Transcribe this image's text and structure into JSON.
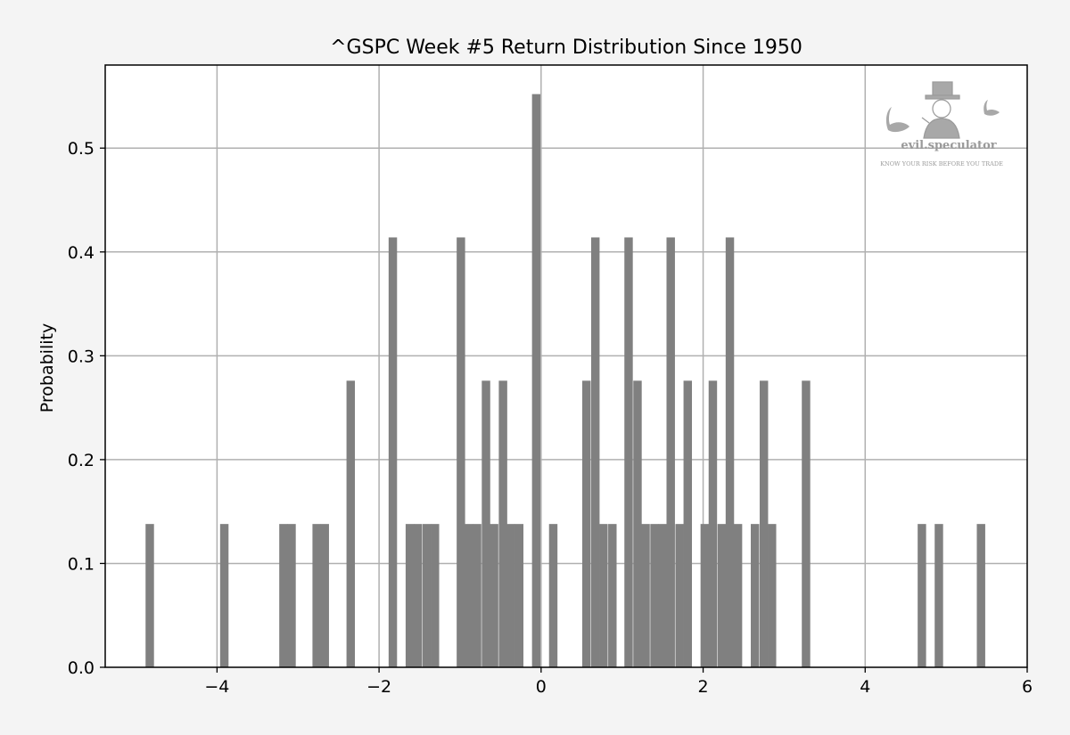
{
  "chart_data": {
    "type": "bar",
    "title": "^GSPC Week #5 Return Distribution Since 1950",
    "xlabel": "",
    "ylabel": "Probability",
    "xlim": [
      -5.38,
      6.0
    ],
    "ylim": [
      0.0,
      0.58
    ],
    "grid": true,
    "bin_width": 0.104,
    "xticks": [
      -4,
      -2,
      0,
      2,
      4,
      6
    ],
    "xtick_labels": [
      "−4",
      "−2",
      "0",
      "2",
      "4",
      "6"
    ],
    "yticks": [
      0.0,
      0.1,
      0.2,
      0.3,
      0.4,
      0.5
    ],
    "ytick_labels": [
      "0.0",
      "0.1",
      "0.2",
      "0.3",
      "0.4",
      "0.5"
    ],
    "color": "#808080",
    "bins": [
      {
        "x": -4.83,
        "y": 0.138
      },
      {
        "x": -3.91,
        "y": 0.138
      },
      {
        "x": -3.18,
        "y": 0.138
      },
      {
        "x": -3.08,
        "y": 0.138
      },
      {
        "x": -2.77,
        "y": 0.138
      },
      {
        "x": -2.67,
        "y": 0.138
      },
      {
        "x": -2.35,
        "y": 0.276
      },
      {
        "x": -1.83,
        "y": 0.414
      },
      {
        "x": -1.62,
        "y": 0.138
      },
      {
        "x": -1.52,
        "y": 0.138
      },
      {
        "x": -1.41,
        "y": 0.138
      },
      {
        "x": -1.31,
        "y": 0.138
      },
      {
        "x": -0.99,
        "y": 0.414
      },
      {
        "x": -0.89,
        "y": 0.138
      },
      {
        "x": -0.79,
        "y": 0.138
      },
      {
        "x": -0.68,
        "y": 0.276
      },
      {
        "x": -0.58,
        "y": 0.138
      },
      {
        "x": -0.47,
        "y": 0.276
      },
      {
        "x": -0.37,
        "y": 0.138
      },
      {
        "x": -0.27,
        "y": 0.138
      },
      {
        "x": -0.06,
        "y": 0.552
      },
      {
        "x": 0.15,
        "y": 0.138
      },
      {
        "x": 0.56,
        "y": 0.276
      },
      {
        "x": 0.67,
        "y": 0.414
      },
      {
        "x": 0.77,
        "y": 0.138
      },
      {
        "x": 0.88,
        "y": 0.138
      },
      {
        "x": 1.08,
        "y": 0.414
      },
      {
        "x": 1.19,
        "y": 0.276
      },
      {
        "x": 1.29,
        "y": 0.138
      },
      {
        "x": 1.4,
        "y": 0.138
      },
      {
        "x": 1.5,
        "y": 0.138
      },
      {
        "x": 1.6,
        "y": 0.414
      },
      {
        "x": 1.71,
        "y": 0.138
      },
      {
        "x": 1.81,
        "y": 0.276
      },
      {
        "x": 2.02,
        "y": 0.138
      },
      {
        "x": 2.12,
        "y": 0.276
      },
      {
        "x": 2.23,
        "y": 0.138
      },
      {
        "x": 2.33,
        "y": 0.414
      },
      {
        "x": 2.43,
        "y": 0.138
      },
      {
        "x": 2.64,
        "y": 0.138
      },
      {
        "x": 2.75,
        "y": 0.276
      },
      {
        "x": 2.85,
        "y": 0.138
      },
      {
        "x": 3.27,
        "y": 0.276
      },
      {
        "x": 4.7,
        "y": 0.138
      },
      {
        "x": 4.91,
        "y": 0.138
      },
      {
        "x": 5.43,
        "y": 0.138
      }
    ]
  },
  "watermark": {
    "brand": "evil.speculator",
    "tagline": "KNOW YOUR RISK BEFORE YOU TRADE"
  }
}
